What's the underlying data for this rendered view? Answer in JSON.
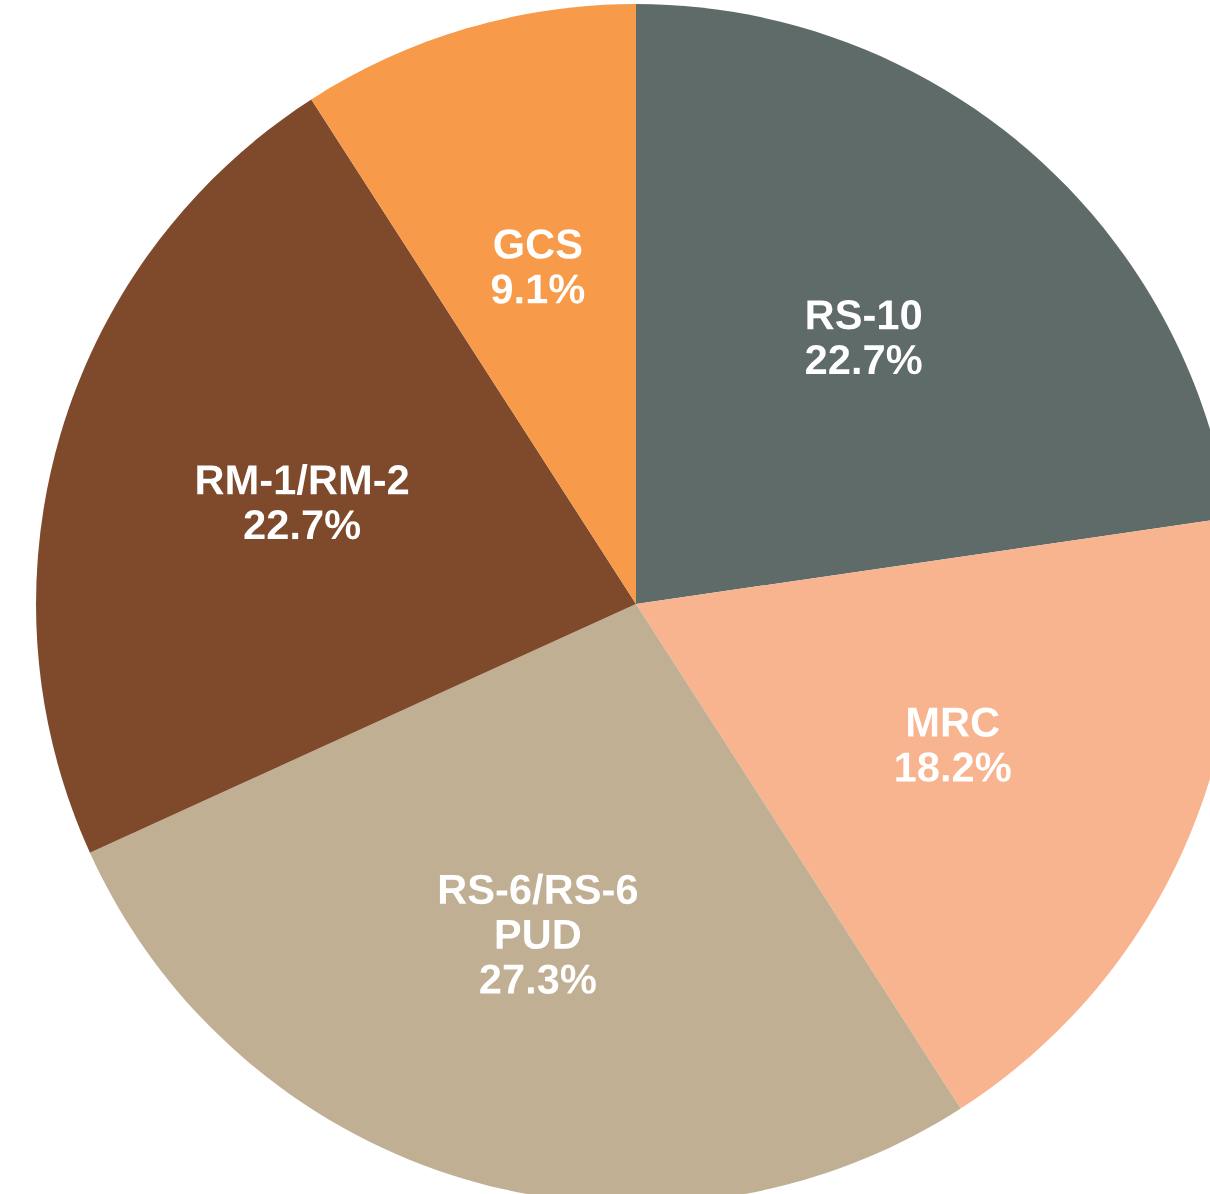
{
  "chart_data": {
    "type": "pie",
    "categories": [
      "RS-10",
      "MRC",
      "RS-6/RS-6\nPUD",
      "RM-1/RM-2",
      "GCS"
    ],
    "values": [
      22.7,
      18.2,
      27.3,
      22.7,
      9.1
    ],
    "colors": [
      "#5f6b69",
      "#f7b48e",
      "#c1af94",
      "#7f4a2b",
      "#f79a4a"
    ],
    "value_labels": [
      "22.7%",
      "18.2%",
      "27.3%",
      "22.7%",
      "9.1%"
    ]
  }
}
